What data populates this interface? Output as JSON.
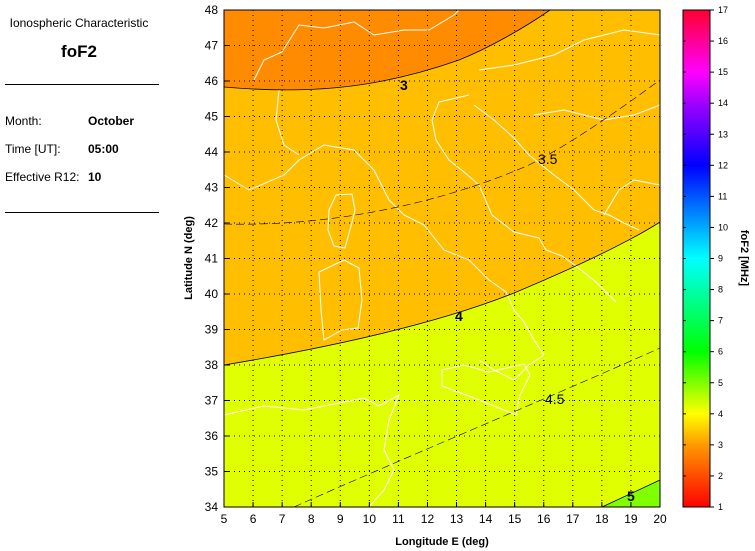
{
  "info": {
    "heading": "Ionospheric Characteristic",
    "characteristic": "foF2",
    "fields": [
      {
        "label": "Month:",
        "value": "October"
      },
      {
        "label": "Time [UT]:",
        "value": "05:00"
      },
      {
        "label": "Effective R12:",
        "value": "10"
      }
    ]
  },
  "map": {
    "xlabel": "Longitude E (deg)",
    "ylabel": "Latitude N (deg)",
    "xlim": [
      5,
      20
    ],
    "ylim": [
      34,
      48
    ],
    "xticks": [
      "5",
      "6",
      "7",
      "8",
      "9",
      "10",
      "11",
      "12",
      "13",
      "14",
      "15",
      "16",
      "17",
      "18",
      "19",
      "20"
    ],
    "yticks": [
      "34",
      "35",
      "36",
      "37",
      "38",
      "39",
      "40",
      "41",
      "42",
      "43",
      "44",
      "45",
      "46",
      "47",
      "48"
    ],
    "grid": true,
    "contour_labels": [
      "3",
      "3.5",
      "4",
      "4.5",
      "5"
    ],
    "band_colors": {
      "below_3": "#ff8c00",
      "3_to_4": "#ffbf00",
      "4_to_5": "#e0ff00",
      "above_5": "#80ff00"
    },
    "coastline_color": "#ffffff"
  },
  "colorbar": {
    "label": "foF2 [MHz]",
    "range": [
      1,
      17
    ],
    "ticks": [
      "1",
      "2",
      "3",
      "4",
      "5",
      "6",
      "7",
      "8",
      "9",
      "10",
      "11",
      "12",
      "13",
      "14",
      "15",
      "16",
      "17"
    ]
  }
}
